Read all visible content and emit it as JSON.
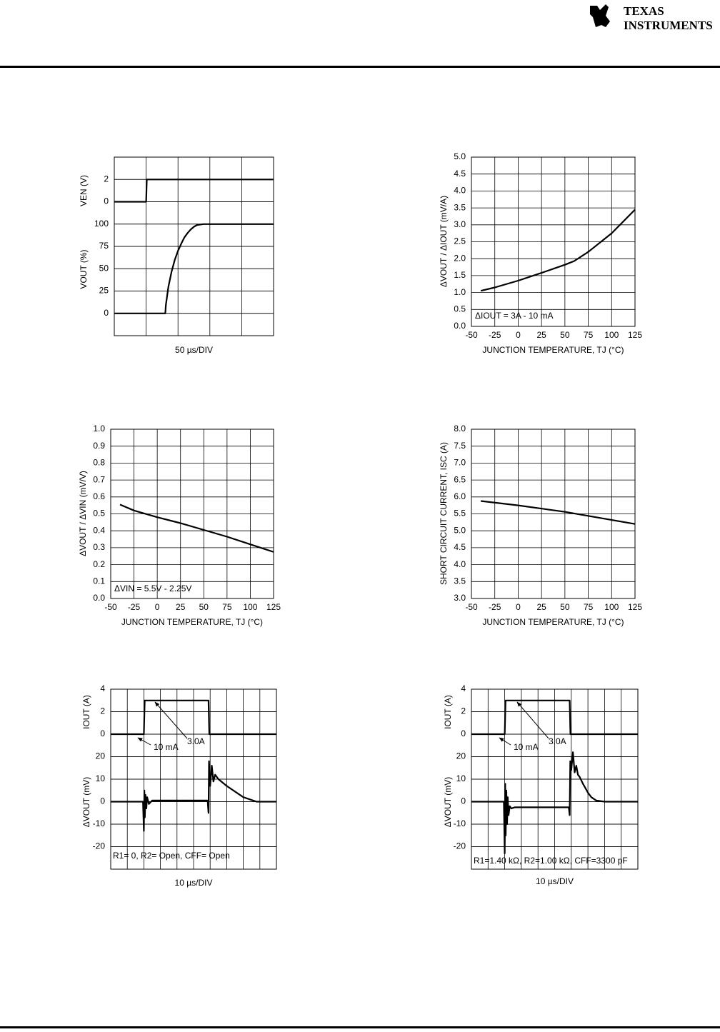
{
  "header": {
    "logo_line1": "TEXAS",
    "logo_line2": "INSTRUMENTS"
  },
  "chart_data": [
    {
      "type": "line",
      "xlabel": "50 µs/DIV",
      "ylabel": "VOUT (%)",
      "y2label": "VEN (V)",
      "xlim": [
        0,
        250
      ],
      "ylim": [
        -25,
        175
      ],
      "yticks": [
        0,
        25,
        50,
        75,
        100
      ],
      "y2lim": [
        -12,
        4
      ],
      "y2ticks": [
        0,
        2
      ],
      "grid": true,
      "series": [
        {
          "axis": "y2",
          "color": "#000000",
          "x": [
            0,
            50,
            51,
            250
          ],
          "values": [
            0,
            0,
            2,
            2
          ]
        },
        {
          "color": "#000000",
          "x": [
            0,
            80,
            81,
            85,
            90,
            95,
            100,
            105,
            110,
            115,
            120,
            125,
            130,
            140,
            250
          ],
          "values": [
            0,
            0,
            10,
            30,
            47,
            60,
            70,
            78,
            85,
            90,
            94,
            97,
            99,
            100,
            100
          ]
        }
      ]
    },
    {
      "type": "line",
      "xlabel": "JUNCTION TEMPERATURE, TJ (°C)",
      "ylabel": "ΔVOUT / ΔIOUT (mV/A)",
      "annotations": [
        "ΔIOUT = 3A - 10 mA"
      ],
      "xlim": [
        -50,
        125
      ],
      "xticks": [
        -50,
        -25,
        0,
        25,
        50,
        75,
        100,
        125
      ],
      "ylim": [
        0,
        5
      ],
      "yticks": [
        {
          "value": 0,
          "label": "0.0"
        },
        0.5,
        {
          "value": 1,
          "label": "1.0"
        },
        1.5,
        {
          "value": 2,
          "label": "2.0"
        },
        2.5,
        {
          "value": 3,
          "label": "3.0"
        },
        3.5,
        {
          "value": 4,
          "label": "4.0"
        },
        4.5,
        {
          "value": 5,
          "label": "5.0"
        }
      ],
      "grid": true,
      "series": [
        {
          "color": "#000000",
          "x": [
            -40,
            -25,
            0,
            25,
            50,
            60,
            75,
            100,
            125
          ],
          "values": [
            1.05,
            1.15,
            1.35,
            1.58,
            1.82,
            1.93,
            2.2,
            2.75,
            3.45
          ]
        }
      ]
    },
    {
      "type": "line",
      "xlabel": "JUNCTION TEMPERATURE, TJ (°C)",
      "ylabel": "ΔVOUT / ΔVIN (mV/V)",
      "annotations": [
        "ΔVIN = 5.5V - 2.25V"
      ],
      "xlim": [
        -50,
        125
      ],
      "xticks": [
        -50,
        -25,
        0,
        25,
        50,
        75,
        100,
        125
      ],
      "ylim": [
        0,
        1
      ],
      "yticks": [
        {
          "value": 0,
          "label": "0.0"
        },
        0.1,
        0.2,
        0.3,
        0.4,
        0.5,
        0.6,
        0.7,
        0.8,
        0.9,
        {
          "value": 1,
          "label": "1.0"
        }
      ],
      "grid": true,
      "series": [
        {
          "color": "#000000",
          "x": [
            -40,
            -25,
            0,
            25,
            50,
            75,
            100,
            125
          ],
          "values": [
            0.555,
            0.52,
            0.48,
            0.445,
            0.405,
            0.365,
            0.32,
            0.275
          ]
        }
      ]
    },
    {
      "type": "line",
      "xlabel": "JUNCTION TEMPERATURE, TJ (°C)",
      "ylabel": "SHORT CIRCUIT CURRENT, ISC (A)",
      "xlim": [
        -50,
        125
      ],
      "xticks": [
        -50,
        -25,
        0,
        25,
        50,
        75,
        100,
        125
      ],
      "ylim": [
        3,
        8
      ],
      "yticks": [
        {
          "value": 3,
          "label": "3.0"
        },
        3.5,
        {
          "value": 4,
          "label": "4.0"
        },
        4.5,
        {
          "value": 5,
          "label": "5.0"
        },
        5.5,
        {
          "value": 6,
          "label": "6.0"
        },
        6.5,
        {
          "value": 7,
          "label": "7.0"
        },
        7.5,
        {
          "value": 8,
          "label": "8.0"
        }
      ],
      "grid": true,
      "series": [
        {
          "color": "#000000",
          "x": [
            -40,
            0,
            50,
            125
          ],
          "values": [
            5.88,
            5.75,
            5.56,
            5.2
          ]
        }
      ]
    },
    {
      "type": "line",
      "xlabel": "10 µs/DIV",
      "ylabel": "ΔVOUT (mV)",
      "y2label": "IOUT (A)",
      "annotations": [
        "10 mA",
        "3.0A",
        "R1= 0, R2= Open, CFF= Open"
      ],
      "xlim": [
        0,
        100
      ],
      "ylim": [
        -30,
        50
      ],
      "yticks": [
        -20,
        -10,
        0,
        10,
        20
      ],
      "y2lim": [
        -12,
        4
      ],
      "y2ticks": [
        0,
        2,
        4
      ],
      "grid": true,
      "series": [
        {
          "axis": "y2",
          "color": "#000000",
          "x": [
            0,
            20,
            20.5,
            59,
            59.5,
            100
          ],
          "values": [
            0,
            0,
            3,
            3,
            0,
            0
          ]
        },
        {
          "color": "#000000",
          "x": [
            0,
            19.5,
            20,
            20.3,
            20.6,
            21,
            21.5,
            22,
            23,
            25,
            30,
            40,
            58.5,
            59,
            59.3,
            60,
            61,
            62,
            63,
            65,
            70,
            80,
            88,
            100
          ],
          "values": [
            0,
            0,
            -13,
            5,
            -7,
            3,
            -3,
            2,
            -1,
            0.5,
            0.5,
            0.5,
            0.5,
            -5,
            18,
            7,
            16,
            9,
            12,
            10,
            7,
            2,
            0,
            0
          ]
        }
      ]
    },
    {
      "type": "line",
      "xlabel": "10 µs/DIV",
      "ylabel": "ΔVOUT (mV)",
      "y2label": "IOUT (A)",
      "annotations": [
        "10 mA",
        "3.0A",
        "R1=1.40 kΩ, R2=1.00 kΩ, CFF=3300 pF"
      ],
      "xlim": [
        0,
        100
      ],
      "ylim": [
        -30,
        50
      ],
      "yticks": [
        -20,
        -10,
        0,
        10,
        20
      ],
      "y2lim": [
        -12,
        4
      ],
      "y2ticks": [
        0,
        2,
        4
      ],
      "grid": true,
      "series": [
        {
          "axis": "y2",
          "color": "#000000",
          "x": [
            0,
            20,
            20.5,
            59,
            59.5,
            100
          ],
          "values": [
            0,
            0,
            3,
            3,
            0,
            0
          ]
        },
        {
          "color": "#000000",
          "x": [
            0,
            19.5,
            20,
            20.3,
            20.6,
            21,
            21.4,
            21.8,
            22.3,
            23,
            24,
            26,
            58.5,
            59,
            59.4,
            60,
            61,
            62,
            63,
            64,
            65,
            67,
            70,
            72,
            75,
            80,
            100
          ],
          "values": [
            0,
            0,
            -23,
            8,
            -15,
            5,
            -10,
            2,
            -6,
            -2,
            -3,
            -2.5,
            -2.5,
            -6,
            18,
            14,
            22,
            13,
            16,
            12,
            11,
            8,
            4,
            2,
            0.5,
            0,
            0
          ]
        }
      ]
    }
  ]
}
